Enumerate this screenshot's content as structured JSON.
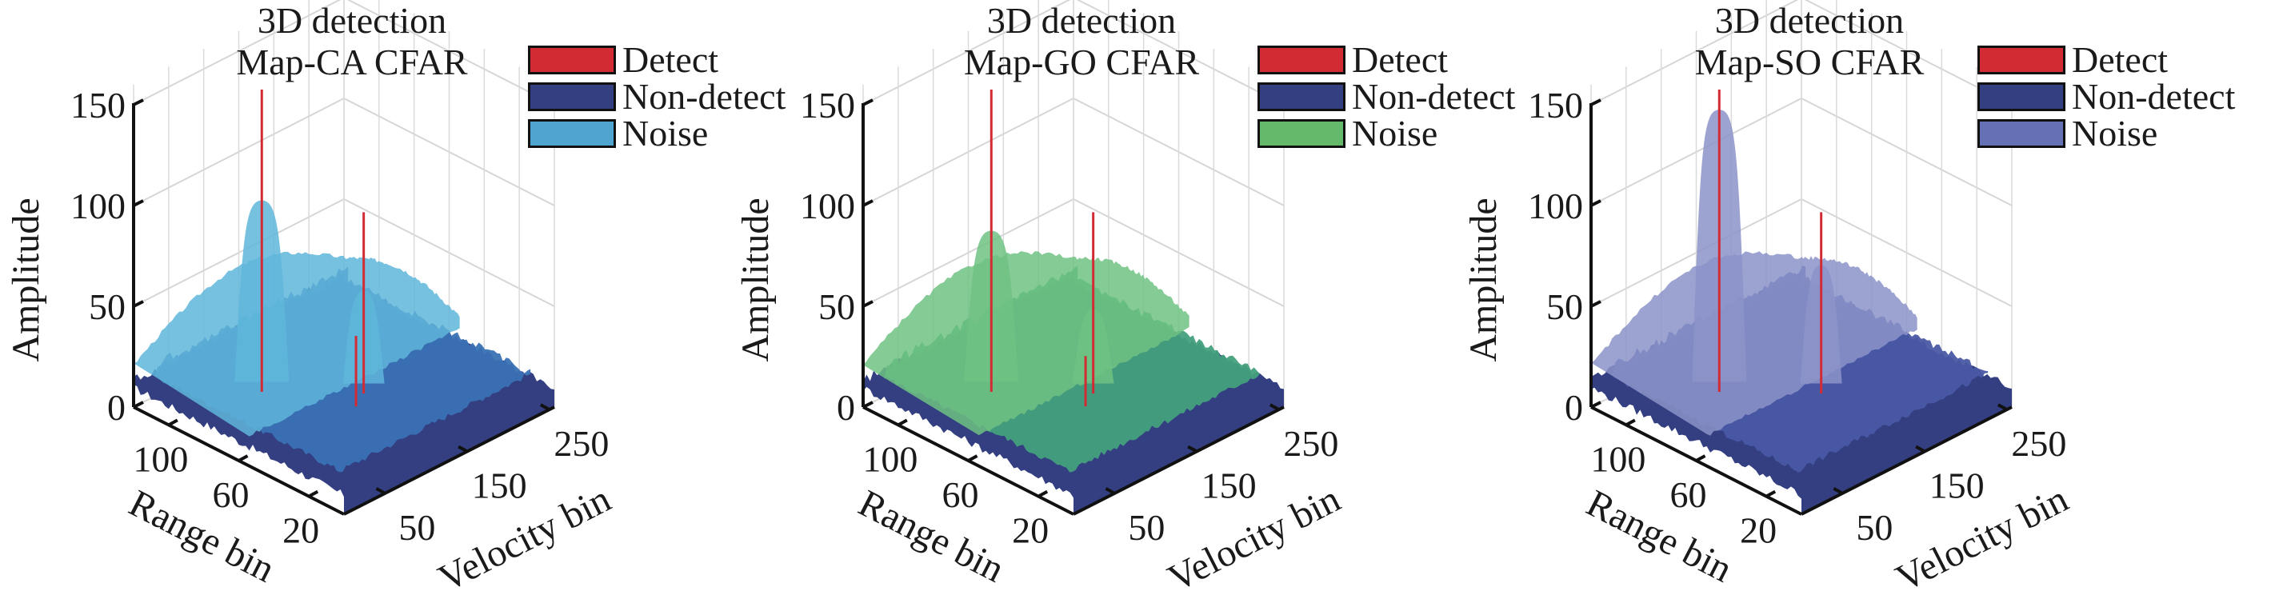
{
  "figure": {
    "panels": [
      {
        "id": "ca",
        "title_line1": "3D detection",
        "title_line2": "Map-CA CFAR",
        "legend": [
          {
            "label": "Detect",
            "color": "#d22b33"
          },
          {
            "label": "Non-detect",
            "color": "#343f82"
          },
          {
            "label": "Noise",
            "color": "#4fa4d0"
          }
        ],
        "surface_colors": {
          "noise": "#5fb6da",
          "signal": "#3a72b4",
          "floor": "#343f82",
          "detect": "#d22b33"
        }
      },
      {
        "id": "go",
        "title_line1": "3D detection",
        "title_line2": "Map-GO CFAR",
        "legend": [
          {
            "label": "Detect",
            "color": "#d22b33"
          },
          {
            "label": "Non-detect",
            "color": "#343f82"
          },
          {
            "label": "Noise",
            "color": "#64b96a"
          }
        ],
        "surface_colors": {
          "noise": "#6fc282",
          "signal": "#45a07c",
          "floor": "#343f82",
          "detect": "#d22b33"
        }
      },
      {
        "id": "so",
        "title_line1": "3D detection",
        "title_line2": "Map-SO CFAR",
        "legend": [
          {
            "label": "Detect",
            "color": "#d22b33"
          },
          {
            "label": "Non-detect",
            "color": "#343f82"
          },
          {
            "label": "Noise",
            "color": "#6670b4"
          }
        ],
        "surface_colors": {
          "noise": "#8c93c9",
          "signal": "#4a58a4",
          "floor": "#343f82",
          "detect": "#d22b33"
        }
      }
    ]
  },
  "chart_data": [
    {
      "type": "surface3d",
      "title": "3D detection Map-CA CFAR",
      "zlabel": "Amplitude",
      "xlabel": "Range bin",
      "ylabel": "Velocity bin",
      "zticks": [
        0,
        50,
        100,
        150
      ],
      "xticks": [
        20,
        60,
        100
      ],
      "yticks": [
        50,
        150,
        250
      ],
      "zlim": [
        0,
        150
      ],
      "xlim": [
        0,
        120
      ],
      "ylim": [
        0,
        256
      ],
      "grid": true,
      "legend_position": "top-right",
      "series": [
        {
          "name": "Detect",
          "peaks": [
            {
              "range": 75,
              "velocity": 60,
              "amplitude": 165
            },
            {
              "range": 45,
              "velocity": 120,
              "amplitude": 105
            },
            {
              "range": 40,
              "velocity": 100,
              "amplitude": 50
            }
          ]
        },
        {
          "name": "Non-detect",
          "level_range": [
            0,
            30
          ]
        },
        {
          "name": "Noise",
          "level_range": [
            20,
            42
          ],
          "peak_amplitude": 110
        }
      ]
    },
    {
      "type": "surface3d",
      "title": "3D detection Map-GO CFAR",
      "zlabel": "Amplitude",
      "xlabel": "Range bin",
      "ylabel": "Velocity bin",
      "zticks": [
        0,
        50,
        100,
        150
      ],
      "xticks": [
        20,
        60,
        100
      ],
      "yticks": [
        50,
        150,
        250
      ],
      "zlim": [
        0,
        150
      ],
      "xlim": [
        0,
        120
      ],
      "ylim": [
        0,
        256
      ],
      "grid": true,
      "legend_position": "top-right",
      "series": [
        {
          "name": "Detect",
          "peaks": [
            {
              "range": 75,
              "velocity": 60,
              "amplitude": 165
            },
            {
              "range": 45,
              "velocity": 120,
              "amplitude": 105
            },
            {
              "range": 40,
              "velocity": 100,
              "amplitude": 40
            }
          ]
        },
        {
          "name": "Non-detect",
          "level_range": [
            0,
            30
          ]
        },
        {
          "name": "Noise",
          "level_range": [
            20,
            42
          ],
          "peak_amplitude": 95
        }
      ]
    },
    {
      "type": "surface3d",
      "title": "3D detection Map-SO CFAR",
      "zlabel": "Amplitude",
      "xlabel": "Range bin",
      "ylabel": "Velocity bin",
      "zticks": [
        0,
        50,
        100,
        150
      ],
      "xticks": [
        20,
        60,
        100
      ],
      "yticks": [
        50,
        150,
        250
      ],
      "zlim": [
        0,
        150
      ],
      "xlim": [
        0,
        120
      ],
      "ylim": [
        0,
        256
      ],
      "grid": true,
      "legend_position": "top-right",
      "series": [
        {
          "name": "Detect",
          "peaks": [
            {
              "range": 75,
              "velocity": 60,
              "amplitude": 165
            },
            {
              "range": 45,
              "velocity": 120,
              "amplitude": 105
            }
          ]
        },
        {
          "name": "Non-detect",
          "level_range": [
            0,
            30
          ]
        },
        {
          "name": "Noise",
          "level_range": [
            20,
            42
          ],
          "peak_amplitude": 155
        }
      ]
    }
  ]
}
